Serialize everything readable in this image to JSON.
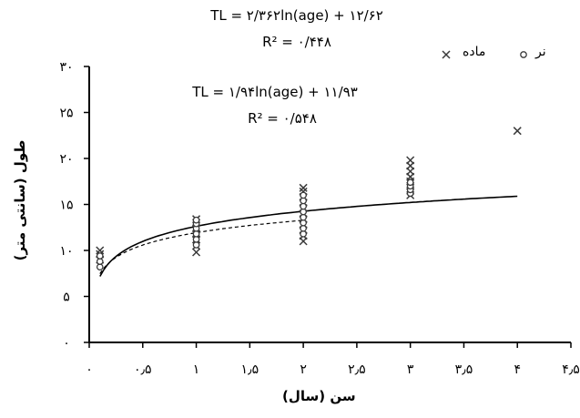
{
  "chart_data": {
    "type": "scatter",
    "xlabel": "سن (سال)",
    "ylabel": "طول (سانتی متر)",
    "xlim": [
      0,
      4.5
    ],
    "ylim": [
      0,
      30
    ],
    "x_ticks": [
      0,
      0.5,
      1,
      1.5,
      2,
      2.5,
      3,
      3.5,
      4,
      4.5
    ],
    "x_tick_labels": [
      "۰",
      "۰٫۵",
      "۱",
      "۱٫۵",
      "۲",
      "۲٫۵",
      "۳",
      "۳٫۵",
      "۴",
      "۴٫۵"
    ],
    "y_ticks": [
      0,
      5,
      10,
      15,
      20,
      25,
      30
    ],
    "y_tick_labels": [
      "۰",
      "۵",
      "۱۰",
      "۱۵",
      "۲۰",
      "۲۵",
      "۳۰"
    ],
    "legend": {
      "position": "top-right",
      "items": [
        "نر",
        "ماده"
      ]
    },
    "series": [
      {
        "name": "ماده",
        "marker": "x",
        "points": [
          [
            0.1,
            9.0
          ],
          [
            0.1,
            9.6
          ],
          [
            0.1,
            10.0
          ],
          [
            1,
            9.8
          ],
          [
            1,
            10.5
          ],
          [
            1,
            11.2
          ],
          [
            1,
            11.8
          ],
          [
            1,
            12.4
          ],
          [
            1,
            13.0
          ],
          [
            1,
            13.4
          ],
          [
            2,
            11.0
          ],
          [
            2,
            11.6
          ],
          [
            2,
            12.2
          ],
          [
            2,
            12.8
          ],
          [
            2,
            13.4
          ],
          [
            2,
            14.0
          ],
          [
            2,
            14.6
          ],
          [
            2,
            15.2
          ],
          [
            2,
            15.8
          ],
          [
            2,
            16.4
          ],
          [
            2,
            16.8
          ],
          [
            3,
            16.0
          ],
          [
            3,
            16.5
          ],
          [
            3,
            17.0
          ],
          [
            3,
            17.5
          ],
          [
            3,
            18.0
          ],
          [
            3,
            18.6
          ],
          [
            3,
            19.2
          ],
          [
            3,
            19.8
          ],
          [
            4,
            23.0
          ]
        ],
        "trend": {
          "equation": "TL = ۲/۳۶۲ln(age) + ۱۲/۶۲",
          "r2": "R² = ۰/۴۴۸",
          "x_range": [
            0.1,
            4
          ],
          "a": 2.362,
          "b": 12.62,
          "style": "solid"
        }
      },
      {
        "name": "نر",
        "marker": "o",
        "points": [
          [
            0.1,
            8.2
          ],
          [
            0.1,
            8.8
          ],
          [
            0.1,
            9.4
          ],
          [
            1,
            10.6
          ],
          [
            1,
            11.2
          ],
          [
            1,
            11.8
          ],
          [
            1,
            12.4
          ],
          [
            1,
            12.9
          ],
          [
            1,
            13.3
          ],
          [
            2,
            11.8
          ],
          [
            2,
            12.4
          ],
          [
            2,
            13.0
          ],
          [
            2,
            13.6
          ],
          [
            2,
            14.2
          ],
          [
            2,
            14.8
          ],
          [
            2,
            15.4
          ],
          [
            2,
            16.0
          ],
          [
            3,
            16.2
          ],
          [
            3,
            16.6
          ],
          [
            3,
            17.0
          ],
          [
            3,
            17.4
          ]
        ],
        "trend": {
          "equation": "TL = ۱/۹۴ln(age) + ۱۱/۹۳",
          "r2": "R² = ۰/۵۴۸",
          "x_range": [
            0.1,
            2
          ],
          "a": 1.94,
          "b": 11.93,
          "style": "dashed"
        }
      }
    ]
  },
  "colors": {
    "axis": "#000000",
    "marker": "#3a3a3a",
    "background": "#ffffff"
  }
}
